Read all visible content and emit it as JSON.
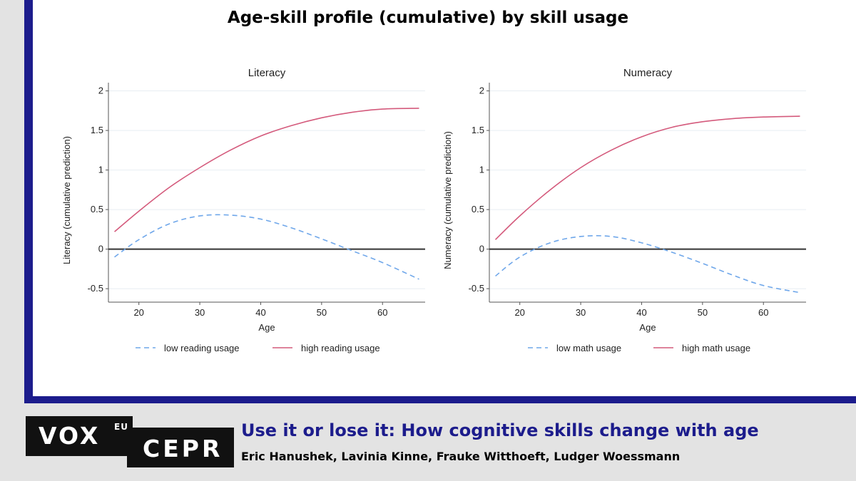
{
  "main_title": "Age-skill profile (cumulative) by skill usage",
  "footer": {
    "article_title": "Use it or lose it: How cognitive skills change with age",
    "authors": "Eric Hanushek, Lavinia Kinne, Frauke Witthoeft, Ludger Woessmann",
    "logo_left": "VOX",
    "logo_left_sup": "EU",
    "logo_right": "CEPR"
  },
  "colors": {
    "accent": "#1c1c8c",
    "low_series": "#6fa7ea",
    "high_series": "#d45a7c",
    "background": "#e3e3e3"
  },
  "chart_data": [
    {
      "type": "line",
      "title": "Literacy",
      "xlabel": "Age",
      "ylabel": "Literacy (cumulative prediction)",
      "xlim": [
        15,
        67
      ],
      "ylim": [
        -0.67,
        2.05
      ],
      "x_ticks": [
        20,
        30,
        40,
        50,
        60
      ],
      "x_tick_labels": [
        "20",
        "30",
        "40",
        "50",
        "60"
      ],
      "y_ticks": [
        -0.5,
        0,
        0.5,
        1,
        1.5,
        2
      ],
      "y_tick_labels": [
        "-0.5",
        "0",
        "0.5",
        "1",
        "1.5",
        "2"
      ],
      "grid": true,
      "legend": "bottom",
      "series": [
        {
          "name": "low reading usage",
          "style": "dashed",
          "color": "#6fa7ea",
          "x": [
            16,
            20,
            25,
            30,
            35,
            40,
            45,
            50,
            55,
            60,
            66
          ],
          "y": [
            -0.1,
            0.12,
            0.32,
            0.42,
            0.43,
            0.38,
            0.27,
            0.13,
            -0.02,
            -0.17,
            -0.38
          ]
        },
        {
          "name": "high reading usage",
          "style": "solid",
          "color": "#d45a7c",
          "x": [
            16,
            20,
            25,
            30,
            35,
            40,
            45,
            50,
            55,
            60,
            66
          ],
          "y": [
            0.22,
            0.48,
            0.78,
            1.03,
            1.25,
            1.43,
            1.56,
            1.66,
            1.73,
            1.77,
            1.78
          ]
        }
      ]
    },
    {
      "type": "line",
      "title": "Numeracy",
      "xlabel": "Age",
      "ylabel": "Numeracy (cumulative prediction)",
      "xlim": [
        15,
        67
      ],
      "ylim": [
        -0.67,
        2.05
      ],
      "x_ticks": [
        20,
        30,
        40,
        50,
        60
      ],
      "x_tick_labels": [
        "20",
        "30",
        "40",
        "50",
        "60"
      ],
      "y_ticks": [
        -0.5,
        0,
        0.5,
        1,
        1.5,
        2
      ],
      "y_tick_labels": [
        "-0.5",
        "0",
        "0.5",
        "1",
        "1.5",
        "2"
      ],
      "grid": true,
      "legend": "bottom",
      "series": [
        {
          "name": "low math usage",
          "style": "dashed",
          "color": "#6fa7ea",
          "x": [
            16,
            20,
            25,
            30,
            35,
            40,
            45,
            50,
            55,
            60,
            66
          ],
          "y": [
            -0.34,
            -0.1,
            0.08,
            0.16,
            0.16,
            0.08,
            -0.04,
            -0.18,
            -0.33,
            -0.46,
            -0.55
          ]
        },
        {
          "name": "high math usage",
          "style": "solid",
          "color": "#d45a7c",
          "x": [
            16,
            20,
            25,
            30,
            35,
            40,
            45,
            50,
            55,
            60,
            66
          ],
          "y": [
            0.12,
            0.42,
            0.75,
            1.03,
            1.25,
            1.42,
            1.54,
            1.61,
            1.65,
            1.67,
            1.68
          ]
        }
      ]
    }
  ]
}
